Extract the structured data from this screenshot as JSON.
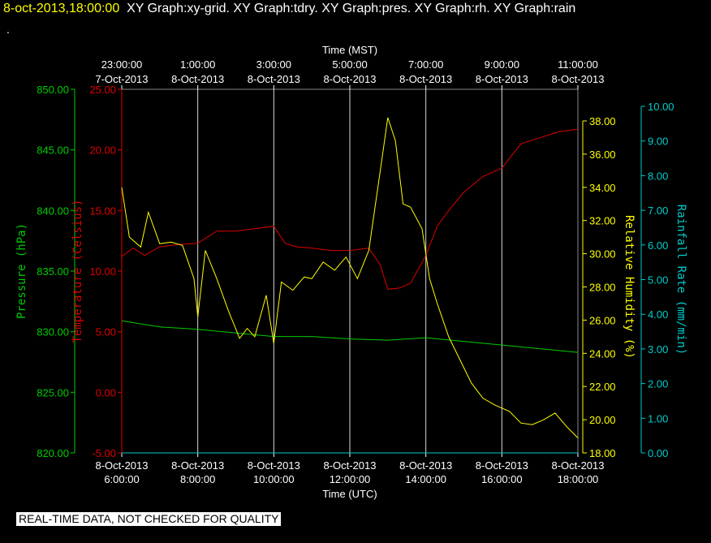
{
  "header": {
    "timestamp": "8-oct-2013,18:00:00",
    "graphs": "XY Graph:xy-grid.  XY Graph:tdry.  XY Graph:pres.  XY Graph:rh.  XY Graph:rain",
    "dot": "."
  },
  "footer_note": "REAL-TIME DATA, NOT CHECKED FOR QUALITY",
  "colors": {
    "pressure": "#00cc00",
    "temperature": "#dd0000",
    "humidity": "#ffff00",
    "rainfall": "#00cccc",
    "grid": "#ffffff",
    "background": "#000000"
  },
  "chart_data": {
    "type": "line",
    "top_axis": {
      "label": "Time (MST)",
      "ticks": [
        {
          "time": "23:00:00",
          "date": "7-Oct-2013"
        },
        {
          "time": "1:00:00",
          "date": "8-Oct-2013"
        },
        {
          "time": "3:00:00",
          "date": "8-Oct-2013"
        },
        {
          "time": "5:00:00",
          "date": "8-Oct-2013"
        },
        {
          "time": "7:00:00",
          "date": "8-Oct-2013"
        },
        {
          "time": "9:00:00",
          "date": "8-Oct-2013"
        },
        {
          "time": "11:00:00",
          "date": "8-Oct-2013"
        }
      ]
    },
    "bottom_axis": {
      "label": "Time (UTC)",
      "ticks": [
        {
          "date": "8-Oct-2013",
          "time": "6:00:00"
        },
        {
          "date": "8-Oct-2013",
          "time": "8:00:00"
        },
        {
          "date": "8-Oct-2013",
          "time": "10:00:00"
        },
        {
          "date": "8-Oct-2013",
          "time": "12:00:00"
        },
        {
          "date": "8-Oct-2013",
          "time": "14:00:00"
        },
        {
          "date": "8-Oct-2013",
          "time": "16:00:00"
        },
        {
          "date": "8-Oct-2013",
          "time": "18:00:00"
        }
      ],
      "range_hours_utc": [
        6,
        18
      ]
    },
    "axes": {
      "pressure": {
        "label": "Pressure (hPa)",
        "ylim": [
          820,
          850
        ],
        "ticks": [
          "820.00",
          "825.00",
          "830.00",
          "835.00",
          "840.00",
          "845.00",
          "850.00"
        ]
      },
      "temperature": {
        "label": "Temperature (Celsius)",
        "ylim": [
          -5,
          25
        ],
        "ticks": [
          "-5.00",
          "0.00",
          "5.00",
          "10.00",
          "15.00",
          "20.00",
          "25.00"
        ]
      },
      "humidity": {
        "label": "Relative Humidity (%)",
        "ylim": [
          18,
          38
        ],
        "ticks": [
          "18.00",
          "20.00",
          "22.00",
          "24.00",
          "26.00",
          "28.00",
          "30.00",
          "32.00",
          "34.00",
          "36.00",
          "38.00"
        ]
      },
      "rainfall": {
        "label": "Rainfall Rate (mm/min)",
        "ylim": [
          0,
          10
        ],
        "ticks": [
          "0.00",
          "1.00",
          "2.00",
          "3.00",
          "4.00",
          "5.00",
          "6.00",
          "7.00",
          "8.00",
          "9.00",
          "10.00"
        ]
      }
    },
    "series": [
      {
        "name": "pres",
        "x": [
          6.0,
          7.0,
          8.0,
          9.0,
          10.0,
          11.0,
          12.0,
          13.0,
          14.0,
          15.0,
          16.0,
          17.0,
          18.0
        ],
        "values": [
          830.9,
          830.4,
          830.2,
          829.9,
          829.6,
          829.6,
          829.4,
          829.3,
          829.5,
          829.2,
          828.9,
          828.6,
          828.3
        ]
      },
      {
        "name": "tdry",
        "x": [
          6.0,
          6.3,
          6.6,
          7.0,
          7.5,
          8.0,
          8.5,
          9.0,
          9.5,
          10.0,
          10.3,
          10.6,
          11.0,
          11.5,
          12.0,
          12.5,
          12.8,
          13.0,
          13.3,
          13.6,
          14.0,
          14.3,
          14.6,
          15.0,
          15.5,
          16.0,
          16.3,
          16.5,
          17.0,
          17.5,
          18.0
        ],
        "values": [
          11.2,
          11.9,
          11.3,
          12.0,
          12.2,
          12.3,
          13.3,
          13.3,
          13.5,
          13.7,
          12.3,
          12.0,
          11.9,
          11.7,
          11.7,
          11.9,
          10.5,
          8.5,
          8.6,
          9.0,
          11.3,
          13.7,
          15.0,
          16.5,
          17.8,
          18.5,
          19.7,
          20.5,
          21.0,
          21.5,
          21.7
        ]
      },
      {
        "name": "rh",
        "x": [
          6.0,
          6.2,
          6.5,
          6.7,
          7.0,
          7.3,
          7.6,
          7.9,
          8.0,
          8.2,
          8.5,
          8.8,
          9.1,
          9.3,
          9.5,
          9.8,
          10.0,
          10.2,
          10.5,
          10.8,
          11.0,
          11.3,
          11.6,
          11.9,
          12.2,
          12.5,
          12.8,
          13.0,
          13.2,
          13.4,
          13.6,
          13.9,
          14.1,
          14.3,
          14.6,
          14.9,
          15.2,
          15.5,
          15.8,
          16.2,
          16.5,
          16.8,
          17.1,
          17.4,
          17.7,
          18.0
        ],
        "values": [
          34.0,
          31.0,
          30.4,
          32.5,
          30.6,
          30.7,
          30.5,
          28.5,
          26.2,
          30.2,
          28.5,
          26.6,
          24.9,
          25.5,
          25.0,
          27.5,
          24.6,
          28.3,
          27.8,
          28.6,
          28.5,
          29.5,
          29.0,
          29.8,
          28.5,
          30.2,
          35.0,
          38.2,
          36.8,
          33.0,
          32.8,
          31.5,
          28.5,
          27.0,
          25.0,
          23.6,
          22.2,
          21.3,
          20.9,
          20.5,
          19.8,
          19.7,
          20.0,
          20.4,
          19.6,
          18.9
        ]
      },
      {
        "name": "rain",
        "x": [
          6.0,
          18.0
        ],
        "values": [
          0.0,
          0.0
        ]
      }
    ],
    "grid": "vertical"
  }
}
